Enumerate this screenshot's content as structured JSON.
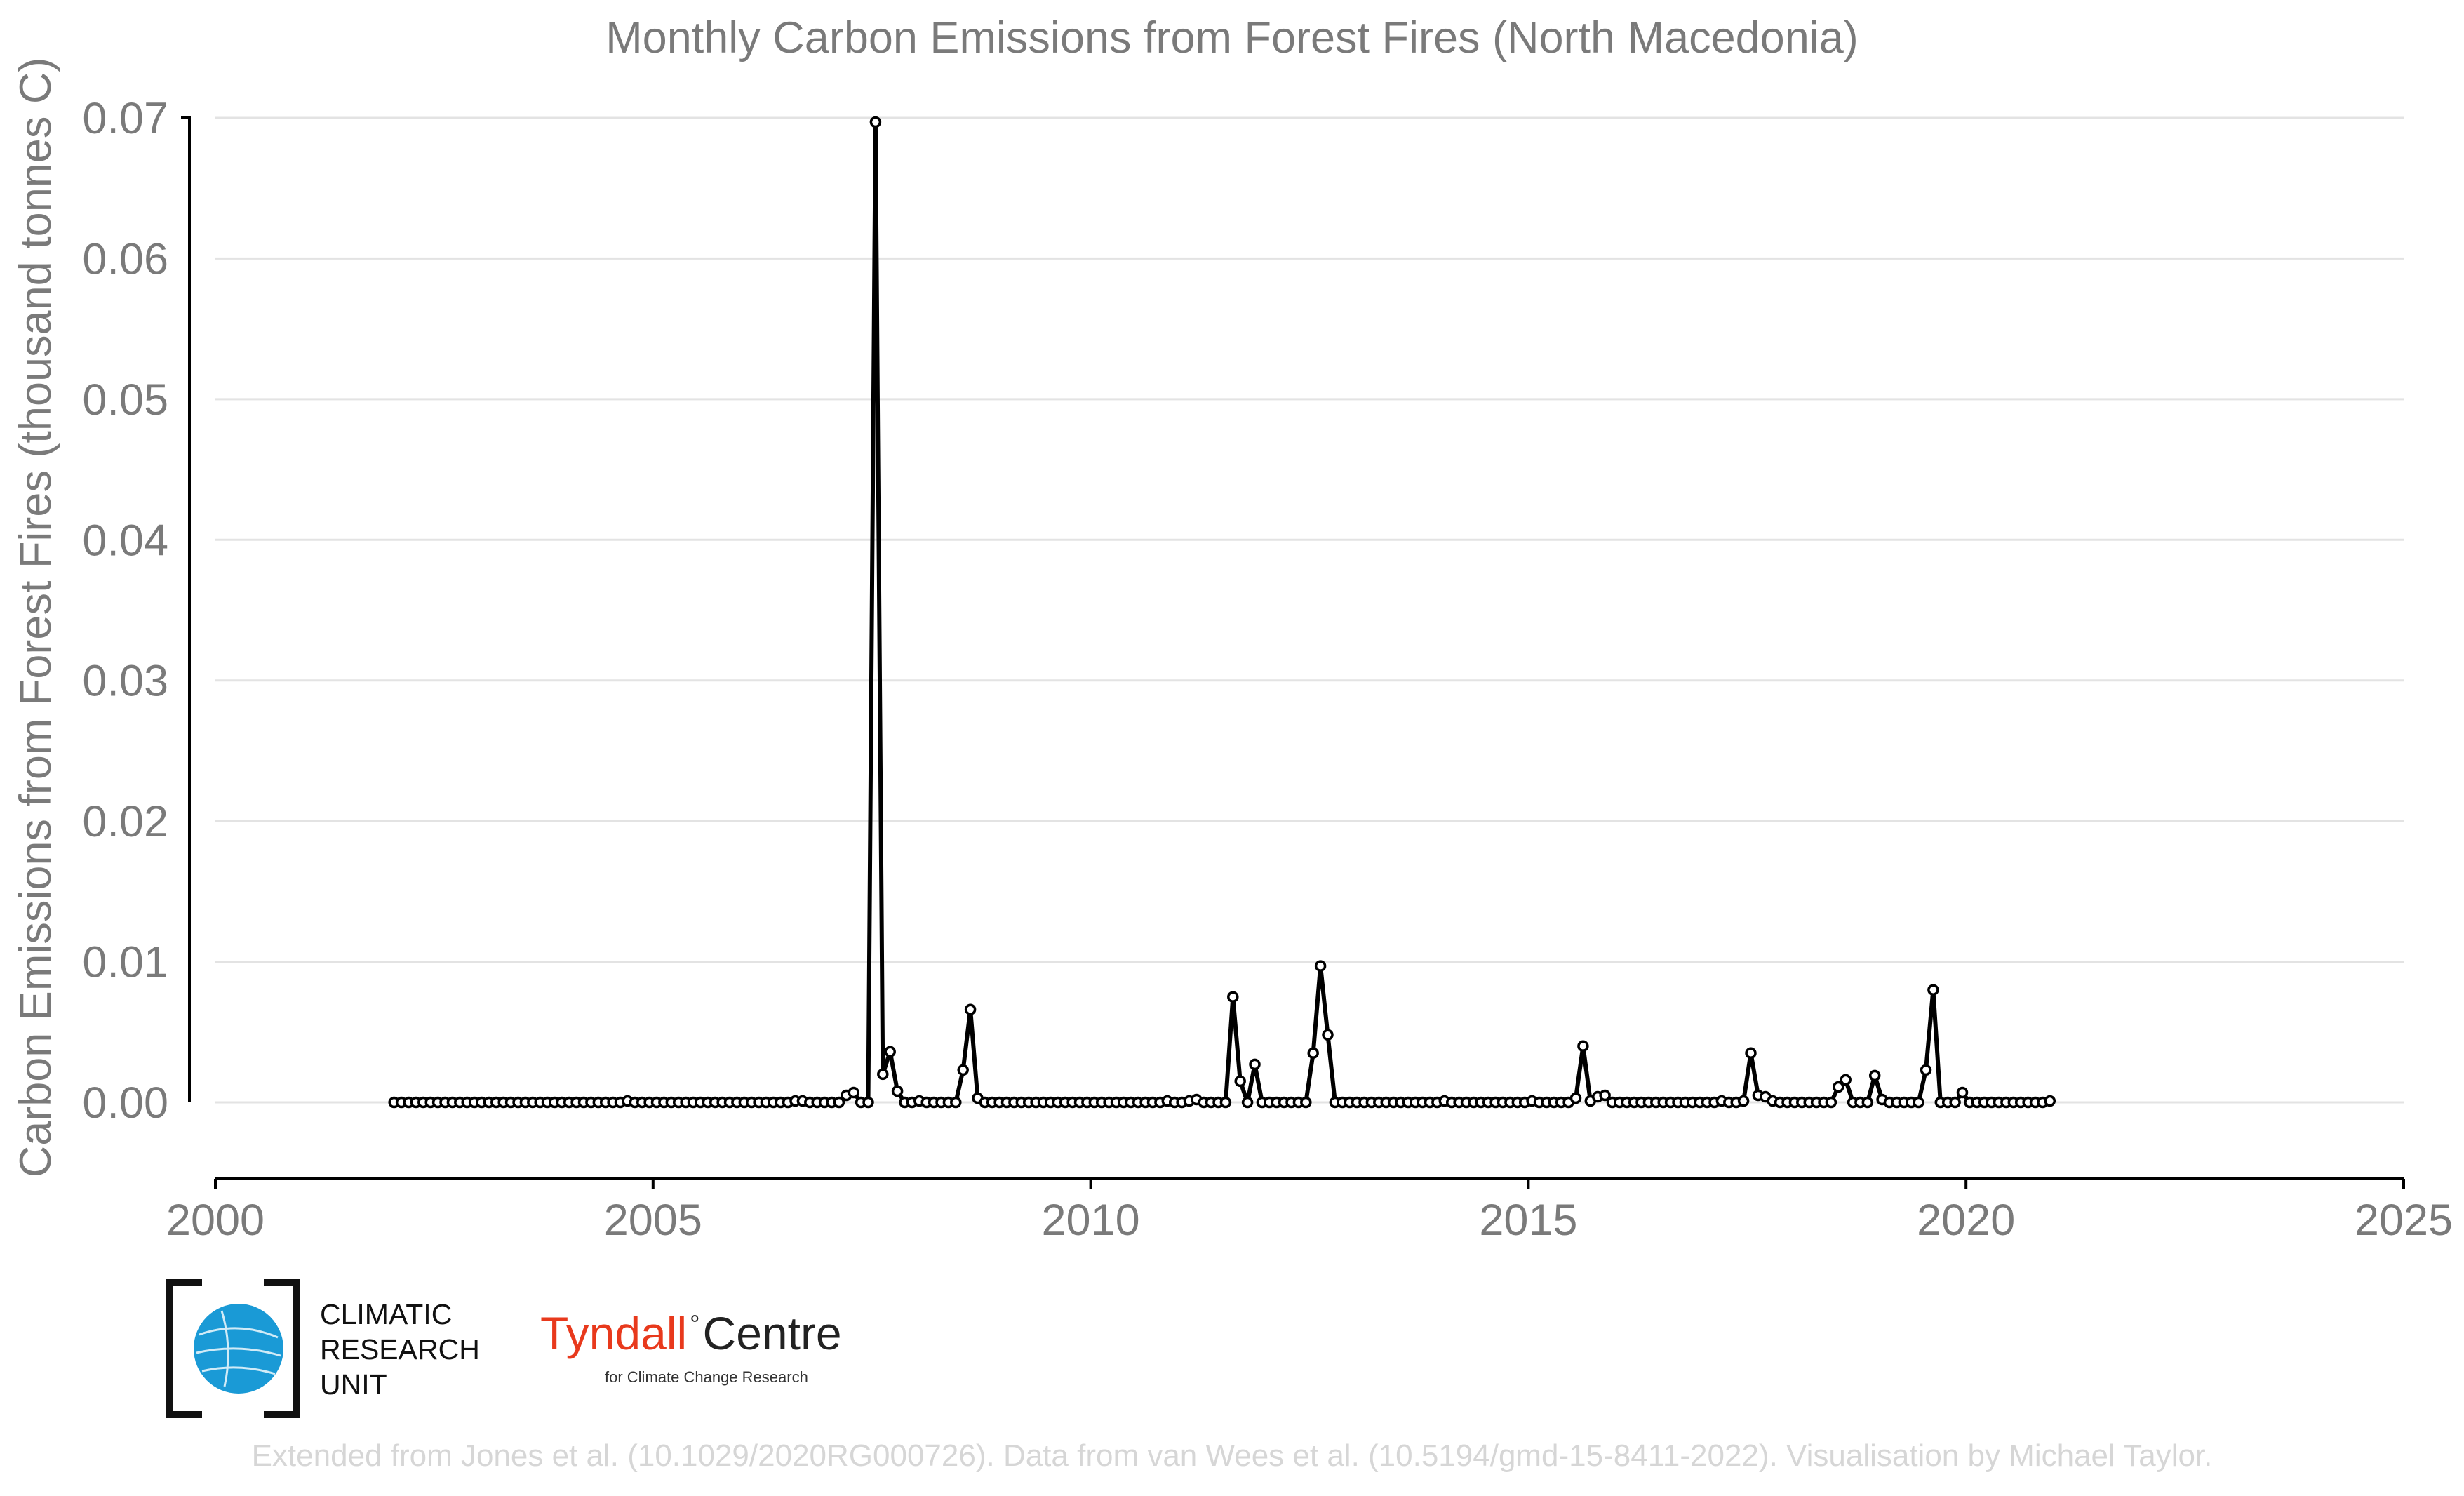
{
  "chart_data": {
    "type": "line",
    "title": "Monthly Carbon Emissions from Forest Fires (North Macedonia)",
    "ylabel": "Carbon Emissions from Forest Fires (thousand tonnes C)",
    "xlabel": "",
    "xlim": [
      2000,
      2025
    ],
    "ylim": [
      -0.005,
      0.07
    ],
    "x_ticks": [
      "2000",
      "2005",
      "2010",
      "2015",
      "2020",
      "2025"
    ],
    "y_ticks": [
      "0.00",
      "0.01",
      "0.02",
      "0.03",
      "0.04",
      "0.05",
      "0.06",
      "0.07"
    ],
    "grid": "horizontal",
    "series_color": "#000000",
    "x_start": "2002-01",
    "x_end": "2020-12",
    "values": [
      0,
      0,
      0,
      0,
      0,
      0,
      0,
      0,
      0,
      0,
      0,
      0,
      0,
      0,
      0,
      0,
      0,
      0,
      0,
      0,
      0,
      0,
      0,
      0,
      0,
      0,
      0,
      0,
      0,
      0,
      0,
      0,
      0.0001,
      0,
      0,
      0,
      0,
      0,
      0,
      0,
      0,
      0,
      0,
      0,
      0,
      0,
      0,
      0,
      0,
      0,
      0,
      0,
      0,
      0,
      0,
      0.0001,
      0.0001,
      0,
      0,
      0,
      0,
      0,
      0.0005,
      0.0007,
      0,
      0,
      0.0697,
      0.002,
      0.0036,
      0.0008,
      0,
      0,
      0.0001,
      0,
      0,
      0,
      0,
      0,
      0.0023,
      0.0066,
      0.0003,
      0,
      0,
      0,
      0,
      0,
      0,
      0,
      0,
      0,
      0,
      0,
      0,
      0,
      0,
      0,
      0,
      0,
      0,
      0,
      0,
      0,
      0,
      0,
      0,
      0,
      0.0001,
      0,
      0,
      0.0001,
      0.0002,
      0,
      0,
      0,
      0,
      0.0075,
      0.0015,
      0,
      0.0027,
      0,
      0,
      0,
      0,
      0,
      0,
      0,
      0.0035,
      0.0097,
      0.0048,
      0,
      0,
      0,
      0,
      0,
      0,
      0,
      0,
      0,
      0,
      0,
      0,
      0,
      0,
      0,
      0.0001,
      0,
      0,
      0,
      0,
      0,
      0,
      0,
      0,
      0,
      0,
      0,
      0.0001,
      0,
      0,
      0,
      0,
      0,
      0.0003,
      0.004,
      0.0001,
      0.0004,
      0.0005,
      0,
      0,
      0,
      0,
      0,
      0,
      0,
      0,
      0,
      0,
      0,
      0,
      0,
      0,
      0,
      0.0001,
      0,
      0,
      0.0001,
      0.0035,
      0.0005,
      0.0004,
      0.0001,
      0,
      0,
      0,
      0,
      0,
      0,
      0,
      0,
      0.0011,
      0.0016,
      0,
      0,
      0,
      0.0019,
      0.0002,
      0,
      0,
      0,
      0,
      0,
      0.0023,
      0.008,
      0,
      0,
      0,
      0.0007,
      0,
      0,
      0,
      0,
      0,
      0,
      0,
      0,
      0,
      0,
      0,
      0.0001
    ]
  },
  "logo": {
    "cru_lines": [
      "CLIMATIC",
      "RESEARCH",
      "UNIT"
    ],
    "tyndall_part1": "Tyndall",
    "tyndall_deg": "°",
    "tyndall_part2": "Centre",
    "tyndall_sub": "for Climate Change Research"
  },
  "credit": "Extended from Jones et al. (10.1029/2020RG000726). Data from van Wees et al. (10.5194/gmd-15-8411-2022). Visualisation by Michael Taylor.",
  "colors": {
    "cru_blue": "#1a9ad6",
    "tyndall_red": "#e8391c",
    "text_gray": "#7a7a7a",
    "credit_gray": "#d6d6d6"
  }
}
